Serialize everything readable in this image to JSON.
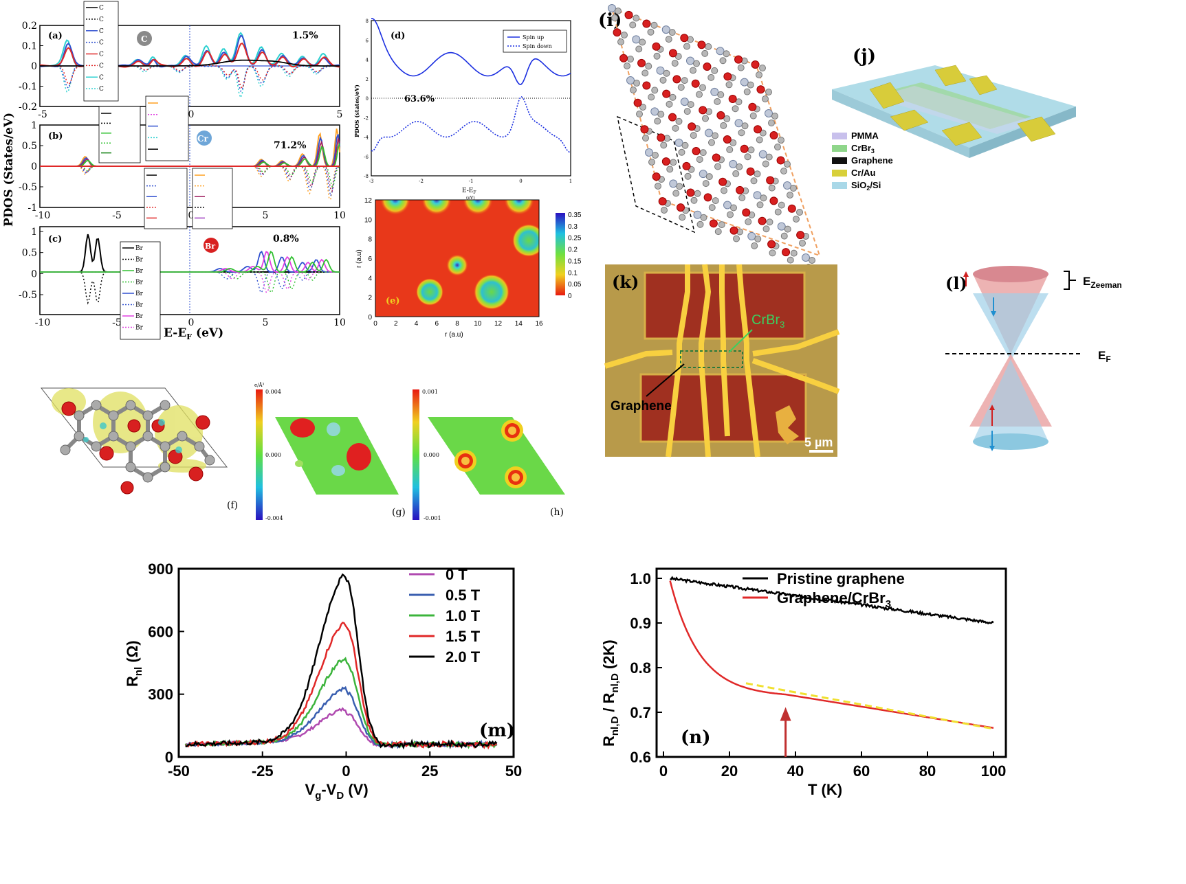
{
  "pdos": {
    "ylabel": "PDOS (States/eV)",
    "xlabel": "E-E",
    "xlabel_sub": "F",
    "xlabel_unit": " (eV)",
    "a": {
      "label": "(a)",
      "percent": "1.5%",
      "element": "C",
      "yticks": [
        "0.2",
        "0.1",
        "0",
        "-0.1",
        "-0.2"
      ],
      "xticks": [
        "-5",
        "0",
        "5"
      ],
      "legend": [
        "C",
        "C",
        "C",
        "C",
        "C",
        "C",
        "C",
        "C"
      ]
    },
    "b": {
      "label": "(b)",
      "percent": "71.2%",
      "element": "Cr",
      "yticks": [
        "1",
        "0.5",
        "0",
        "-0.5",
        "-1"
      ],
      "xticks": [
        "-10",
        "-5",
        "0",
        "5",
        "10"
      ]
    },
    "c": {
      "label": "(c)",
      "percent": "0.8%",
      "element": "Br",
      "yticks": [
        "1",
        "0.5",
        "0",
        "-0.5"
      ],
      "xticks": [
        "-10",
        "-5",
        "0",
        "5",
        "10"
      ],
      "legend": [
        "Br",
        "Br",
        "Br",
        "Br",
        "Br",
        "Br",
        "Br",
        "Br"
      ]
    }
  },
  "panel_d": {
    "label": "(d)",
    "percent": "63.6%",
    "ylabel": "PDOS (states/eV)",
    "xlabel": "E-E",
    "xlabel_sub": "F",
    "xlabel_unit": "(eV)",
    "legend": [
      "Spin up",
      "Spin down"
    ],
    "xticks": [
      "-3",
      "-2",
      "-1",
      "0",
      "1"
    ],
    "yticks": [
      "8",
      "6",
      "4",
      "2",
      "0",
      "-2",
      "-4",
      "-6",
      "-8"
    ]
  },
  "panel_e": {
    "label": "(e)",
    "xlabel": "r (a.u)",
    "ylabel": "r (a.u)",
    "xticks": [
      "0",
      "2",
      "4",
      "6",
      "8",
      "10",
      "12",
      "14",
      "16"
    ],
    "yticks": [
      "0",
      "2",
      "4",
      "6",
      "8",
      "10",
      "12"
    ],
    "colorbar": [
      "0.35",
      "0.3",
      "0.25",
      "0.2",
      "0.15",
      "0.1",
      "0.05",
      "0"
    ]
  },
  "panel_f": {
    "label": "(f)"
  },
  "panel_g": {
    "label": "(g)",
    "unit": "e/Å³",
    "cb_top": "0.004",
    "cb_mid": "0.000",
    "cb_bot": "-0.004"
  },
  "panel_h": {
    "label": "(h)",
    "cb_top": "0.001",
    "cb_mid": "0.000",
    "cb_bot": "-0.001"
  },
  "panel_i": {
    "label": "(i)"
  },
  "panel_j": {
    "label": "(j)",
    "legend": [
      {
        "name": "PMMA",
        "color": "#c8c0ec"
      },
      {
        "name": "CrBr",
        "sub": "3",
        "color": "#8fd68a"
      },
      {
        "name": "Graphene",
        "color": "#111111"
      },
      {
        "name": "Cr/Au",
        "color": "#d8d03a"
      },
      {
        "name": "SiO",
        "sub": "2",
        "tail": "/Si",
        "color": "#a9d8e8"
      }
    ]
  },
  "panel_k": {
    "label": "(k)",
    "crbr": "CrBr",
    "crbr_sub": "3",
    "graphene": "Graphene",
    "scale": "5 µm"
  },
  "panel_l": {
    "label": "(l)",
    "zeeman": "E",
    "zeeman_sub": "Zeeman",
    "ef": "E",
    "ef_sub": "F"
  },
  "chart_data": [
    {
      "type": "line",
      "panel": "(m)",
      "xlabel": "Vg-VD (V)",
      "ylabel": "Rnl (Ω)",
      "xlim": [
        -50,
        50
      ],
      "ylim": [
        0,
        900
      ],
      "xticks": [
        "-50",
        "-25",
        "0",
        "25",
        "50"
      ],
      "yticks": [
        "0",
        "300",
        "600",
        "900"
      ],
      "legend": "top-right",
      "series": [
        {
          "name": "0 T",
          "color": "#b04ab0",
          "peak": 210
        },
        {
          "name": "0.5 T",
          "color": "#3a5fb0",
          "peak": 310
        },
        {
          "name": "1.0 T",
          "color": "#3cb43c",
          "peak": 450
        },
        {
          "name": "1.5 T",
          "color": "#e02828",
          "peak": 620
        },
        {
          "name": "2.0 T",
          "color": "#000000",
          "peak": 850
        }
      ]
    },
    {
      "type": "line",
      "panel": "(n)",
      "xlabel": "T (K)",
      "ylabel": "Rnl,D / Rnl,D (2K)",
      "xlim": [
        0,
        100
      ],
      "ylim": [
        0.6,
        1.0
      ],
      "xticks": [
        "0",
        "20",
        "40",
        "60",
        "80",
        "100"
      ],
      "yticks": [
        "0.6",
        "0.7",
        "0.8",
        "0.9",
        "1.0"
      ],
      "legend": "top-right",
      "arrow_T": 37,
      "series": [
        {
          "name": "Pristine graphene",
          "color": "#000000",
          "x": [
            2,
            20,
            40,
            60,
            80,
            100
          ],
          "y": [
            1.0,
            0.978,
            0.955,
            0.935,
            0.915,
            0.9
          ]
        },
        {
          "name": "Graphene/CrBr3",
          "color": "#e02828",
          "x": [
            2,
            5,
            10,
            15,
            20,
            25,
            30,
            35,
            40,
            60,
            80,
            100
          ],
          "y": [
            1.0,
            0.98,
            0.92,
            0.86,
            0.81,
            0.78,
            0.76,
            0.75,
            0.74,
            0.715,
            0.69,
            0.665
          ]
        }
      ]
    }
  ]
}
